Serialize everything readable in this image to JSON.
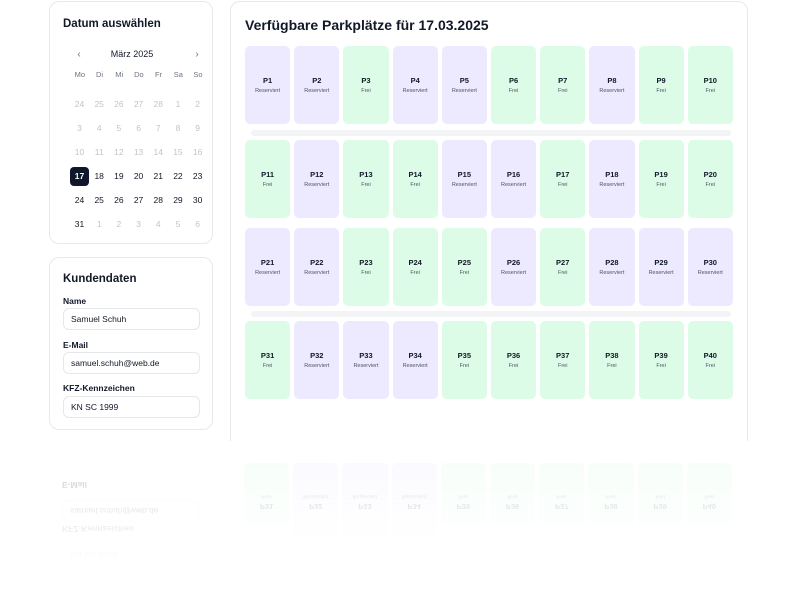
{
  "calendar": {
    "title": "Datum auswählen",
    "month_label": "März 2025",
    "prev_icon": "‹",
    "next_icon": "›",
    "weekdays": [
      "Mo",
      "Di",
      "Mi",
      "Do",
      "Fr",
      "Sa",
      "So"
    ],
    "weeks": [
      [
        {
          "d": "24",
          "m": true
        },
        {
          "d": "25",
          "m": true
        },
        {
          "d": "26",
          "m": true
        },
        {
          "d": "27",
          "m": true
        },
        {
          "d": "28",
          "m": true
        },
        {
          "d": "1",
          "m": true
        },
        {
          "d": "2",
          "m": true
        }
      ],
      [
        {
          "d": "3",
          "m": true
        },
        {
          "d": "4",
          "m": true
        },
        {
          "d": "5",
          "m": true
        },
        {
          "d": "6",
          "m": true
        },
        {
          "d": "7",
          "m": true
        },
        {
          "d": "8",
          "m": true
        },
        {
          "d": "9",
          "m": true
        }
      ],
      [
        {
          "d": "10",
          "m": true
        },
        {
          "d": "11",
          "m": true
        },
        {
          "d": "12",
          "m": true
        },
        {
          "d": "13",
          "m": true
        },
        {
          "d": "14",
          "m": true
        },
        {
          "d": "15",
          "m": true
        },
        {
          "d": "16",
          "m": true
        }
      ],
      [
        {
          "d": "17",
          "m": false,
          "sel": true
        },
        {
          "d": "18",
          "m": false
        },
        {
          "d": "19",
          "m": false
        },
        {
          "d": "20",
          "m": false
        },
        {
          "d": "21",
          "m": false
        },
        {
          "d": "22",
          "m": false
        },
        {
          "d": "23",
          "m": false
        }
      ],
      [
        {
          "d": "24",
          "m": false
        },
        {
          "d": "25",
          "m": false
        },
        {
          "d": "26",
          "m": false
        },
        {
          "d": "27",
          "m": false
        },
        {
          "d": "28",
          "m": false
        },
        {
          "d": "29",
          "m": false
        },
        {
          "d": "30",
          "m": false
        }
      ],
      [
        {
          "d": "31",
          "m": false
        },
        {
          "d": "1",
          "m": true
        },
        {
          "d": "2",
          "m": true
        },
        {
          "d": "3",
          "m": true
        },
        {
          "d": "4",
          "m": true
        },
        {
          "d": "5",
          "m": true
        },
        {
          "d": "6",
          "m": true
        }
      ]
    ]
  },
  "customer": {
    "title": "Kundendaten",
    "name_label": "Name",
    "name_value": "Samuel Schuh",
    "email_label": "E-Mail",
    "email_value": "samuel.schuh@web.de",
    "plate_label": "KFZ-Kennzeichen",
    "plate_value": "KN SC 1999"
  },
  "parking": {
    "title": "Verfügbare Parkplätze für 17.03.2025",
    "status_labels": {
      "frei": "Frei",
      "reserviert": "Reserviert"
    },
    "rows": [
      [
        {
          "id": "P1",
          "s": "reserviert"
        },
        {
          "id": "P2",
          "s": "reserviert"
        },
        {
          "id": "P3",
          "s": "frei"
        },
        {
          "id": "P4",
          "s": "reserviert"
        },
        {
          "id": "P5",
          "s": "reserviert"
        },
        {
          "id": "P6",
          "s": "frei"
        },
        {
          "id": "P7",
          "s": "frei"
        },
        {
          "id": "P8",
          "s": "reserviert"
        },
        {
          "id": "P9",
          "s": "frei"
        },
        {
          "id": "P10",
          "s": "frei"
        }
      ],
      [
        {
          "id": "P11",
          "s": "frei"
        },
        {
          "id": "P12",
          "s": "reserviert"
        },
        {
          "id": "P13",
          "s": "frei"
        },
        {
          "id": "P14",
          "s": "frei"
        },
        {
          "id": "P15",
          "s": "reserviert"
        },
        {
          "id": "P16",
          "s": "reserviert"
        },
        {
          "id": "P17",
          "s": "frei"
        },
        {
          "id": "P18",
          "s": "reserviert"
        },
        {
          "id": "P19",
          "s": "frei"
        },
        {
          "id": "P20",
          "s": "frei"
        }
      ],
      [
        {
          "id": "P21",
          "s": "reserviert"
        },
        {
          "id": "P22",
          "s": "reserviert"
        },
        {
          "id": "P23",
          "s": "frei"
        },
        {
          "id": "P24",
          "s": "frei"
        },
        {
          "id": "P25",
          "s": "frei"
        },
        {
          "id": "P26",
          "s": "reserviert"
        },
        {
          "id": "P27",
          "s": "frei"
        },
        {
          "id": "P28",
          "s": "reserviert"
        },
        {
          "id": "P29",
          "s": "reserviert"
        },
        {
          "id": "P30",
          "s": "reserviert"
        }
      ],
      [
        {
          "id": "P31",
          "s": "frei"
        },
        {
          "id": "P32",
          "s": "reserviert"
        },
        {
          "id": "P33",
          "s": "reserviert"
        },
        {
          "id": "P34",
          "s": "reserviert"
        },
        {
          "id": "P35",
          "s": "frei"
        },
        {
          "id": "P36",
          "s": "frei"
        },
        {
          "id": "P37",
          "s": "frei"
        },
        {
          "id": "P38",
          "s": "frei"
        },
        {
          "id": "P39",
          "s": "frei"
        },
        {
          "id": "P40",
          "s": "frei"
        }
      ]
    ]
  },
  "colors": {
    "frei": "#dcfce7",
    "reserviert": "#ede9fe",
    "selected_day": "#0f172a"
  }
}
